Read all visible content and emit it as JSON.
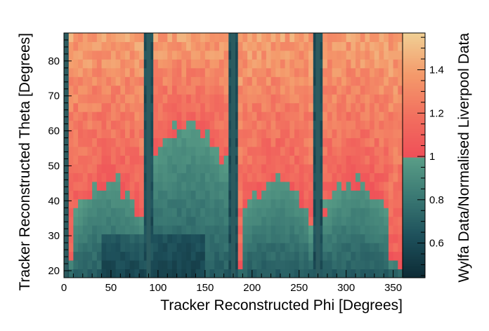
{
  "chart_data": {
    "type": "heatmap",
    "title": "",
    "xlabel": "Tracker Reconstructed Phi [Degrees]",
    "ylabel": "Tracker Reconstructed Theta [Degrees]",
    "zlabel": "Wylfa Data/Normalised Liverpool Data",
    "xlim": [
      0,
      360
    ],
    "ylim": [
      18,
      88
    ],
    "zlim": [
      0.44,
      1.57
    ],
    "x_ticks": [
      0,
      50,
      100,
      150,
      200,
      250,
      300,
      350
    ],
    "y_ticks": [
      20,
      30,
      40,
      50,
      60,
      70,
      80
    ],
    "z_ticks": [
      0.6,
      0.8,
      1,
      1.2,
      1.4
    ],
    "x_bin_width": 5,
    "y_bin_width": 2.5,
    "colormap": {
      "low_colors": [
        "#0d2b35",
        "#1d4f5a",
        "#3a7873",
        "#5a9e87"
      ],
      "high_colors": [
        "#ef4f58",
        "#f2705f",
        "#f49a6b",
        "#f0cf94"
      ],
      "split_value": 1
    },
    "notable_features": {
      "dark_vertical_stripes_phi": [
        2,
        90,
        180,
        270
      ],
      "grid": false
    }
  }
}
